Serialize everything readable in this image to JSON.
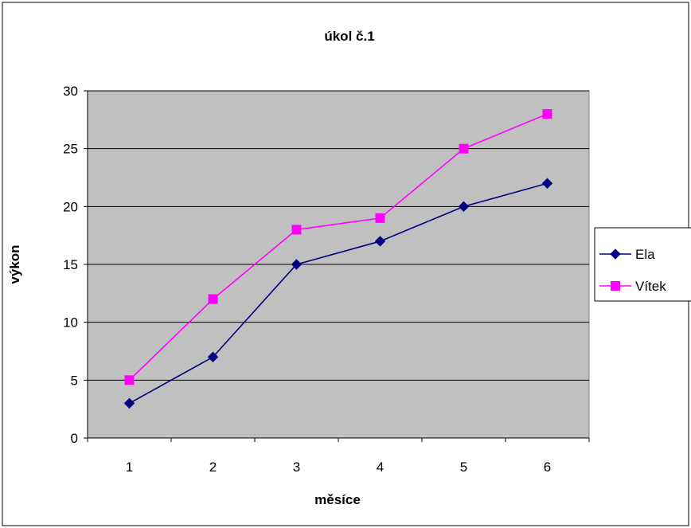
{
  "colors": {
    "background": "#ffffff",
    "plot_area": "#c0c0c0",
    "border": "#000000",
    "gridline": "#000000",
    "ela": "#000080",
    "vitek": "#ff00ff"
  },
  "chart_data": {
    "type": "line",
    "title": "úkol č.1",
    "xlabel": "měsíce",
    "ylabel": "výkon",
    "categories": [
      "1",
      "2",
      "3",
      "4",
      "5",
      "6"
    ],
    "ylim": [
      0,
      30
    ],
    "yticks": [
      "0",
      "5",
      "10",
      "15",
      "20",
      "25",
      "30"
    ],
    "grid": true,
    "legend_position": "right",
    "series": [
      {
        "name": "Ela",
        "values": [
          3,
          7,
          15,
          17,
          20,
          22
        ],
        "color": "#000080",
        "marker": "diamond"
      },
      {
        "name": "Vítek",
        "values": [
          5,
          12,
          18,
          19,
          25,
          28
        ],
        "color": "#ff00ff",
        "marker": "square"
      }
    ]
  }
}
